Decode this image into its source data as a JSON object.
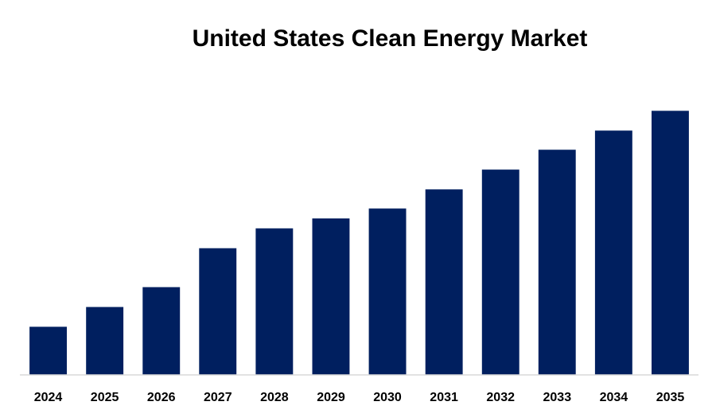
{
  "chart_data": {
    "type": "bar",
    "title": "United States Clean Energy Market",
    "xlabel": "",
    "ylabel": "",
    "categories": [
      "2024",
      "2025",
      "2026",
      "2027",
      "2028",
      "2029",
      "2030",
      "2031",
      "2032",
      "2033",
      "2034",
      "2035"
    ],
    "values": [
      63,
      89,
      115,
      166,
      192,
      205,
      218,
      243,
      269,
      295,
      320,
      346
    ],
    "ylim": [
      0,
      360
    ],
    "grid": false,
    "legend": "none",
    "bar_color": "#001f5f",
    "axis_color": "#d9d9d9"
  }
}
